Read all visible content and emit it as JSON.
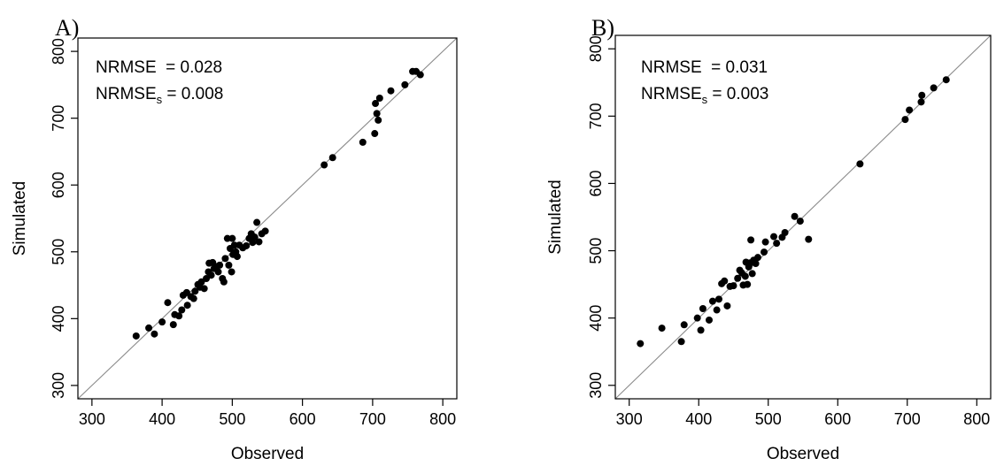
{
  "chart_data": [
    {
      "type": "scatter",
      "panel_label": "A)",
      "xlabel": "Observed",
      "ylabel": "Simulated",
      "xlim": [
        280,
        820
      ],
      "ylim": [
        280,
        820
      ],
      "xticks": [
        300,
        400,
        500,
        600,
        700,
        800
      ],
      "yticks": [
        300,
        400,
        500,
        600,
        700,
        800
      ],
      "grid": false,
      "reference_line": "y = x",
      "annotations": {
        "line1": "NRMSE  = 0.028",
        "line2_prefix": "NRMSE",
        "line2_sub": "s",
        "line2_suffix": " = 0.008"
      },
      "points": [
        [
          363,
          374
        ],
        [
          381,
          386
        ],
        [
          389,
          377
        ],
        [
          400,
          395
        ],
        [
          408,
          424
        ],
        [
          416,
          391
        ],
        [
          418,
          406
        ],
        [
          424,
          404
        ],
        [
          428,
          413
        ],
        [
          430,
          435
        ],
        [
          435,
          439
        ],
        [
          436,
          420
        ],
        [
          441,
          433
        ],
        [
          445,
          430
        ],
        [
          447,
          441
        ],
        [
          451,
          451
        ],
        [
          454,
          447
        ],
        [
          456,
          455
        ],
        [
          460,
          445
        ],
        [
          463,
          460
        ],
        [
          466,
          470
        ],
        [
          467,
          483
        ],
        [
          470,
          465
        ],
        [
          472,
          484
        ],
        [
          474,
          475
        ],
        [
          478,
          478
        ],
        [
          480,
          470
        ],
        [
          482,
          480
        ],
        [
          486,
          460
        ],
        [
          488,
          455
        ],
        [
          490,
          490
        ],
        [
          493,
          520
        ],
        [
          495,
          480
        ],
        [
          497,
          505
        ],
        [
          499,
          470
        ],
        [
          500,
          520
        ],
        [
          501,
          496
        ],
        [
          503,
          510
        ],
        [
          505,
          500
        ],
        [
          507,
          493
        ],
        [
          510,
          510
        ],
        [
          515,
          506
        ],
        [
          520,
          509
        ],
        [
          524,
          520
        ],
        [
          527,
          527
        ],
        [
          529,
          514
        ],
        [
          532,
          522
        ],
        [
          535,
          544
        ],
        [
          538,
          515
        ],
        [
          542,
          527
        ],
        [
          547,
          531
        ],
        [
          631,
          630
        ],
        [
          643,
          641
        ],
        [
          686,
          664
        ],
        [
          703,
          677
        ],
        [
          704,
          722
        ],
        [
          706,
          707
        ],
        [
          708,
          697
        ],
        [
          710,
          730
        ],
        [
          726,
          741
        ],
        [
          746,
          750
        ],
        [
          757,
          770
        ],
        [
          762,
          770
        ],
        [
          768,
          765
        ]
      ]
    },
    {
      "type": "scatter",
      "panel_label": "B)",
      "xlabel": "Observed",
      "ylabel": "Simulated",
      "xlim": [
        280,
        820
      ],
      "ylim": [
        280,
        820
      ],
      "xticks": [
        300,
        400,
        500,
        600,
        700,
        800
      ],
      "yticks": [
        300,
        400,
        500,
        600,
        700,
        800
      ],
      "grid": false,
      "reference_line": "y = x",
      "annotations": {
        "line1": "NRMSE  = 0.031",
        "line2_prefix": "NRMSE",
        "line2_sub": "s",
        "line2_suffix": " = 0.003"
      },
      "points": [
        [
          316,
          362
        ],
        [
          347,
          385
        ],
        [
          375,
          365
        ],
        [
          379,
          390
        ],
        [
          398,
          400
        ],
        [
          403,
          382
        ],
        [
          406,
          414
        ],
        [
          415,
          397
        ],
        [
          420,
          425
        ],
        [
          426,
          412
        ],
        [
          429,
          428
        ],
        [
          433,
          451
        ],
        [
          437,
          455
        ],
        [
          441,
          418
        ],
        [
          445,
          447
        ],
        [
          450,
          448
        ],
        [
          456,
          459
        ],
        [
          459,
          471
        ],
        [
          462,
          467
        ],
        [
          464,
          449
        ],
        [
          467,
          462
        ],
        [
          468,
          483
        ],
        [
          470,
          450
        ],
        [
          472,
          476
        ],
        [
          474,
          482
        ],
        [
          475,
          516
        ],
        [
          477,
          466
        ],
        [
          479,
          486
        ],
        [
          482,
          481
        ],
        [
          485,
          490
        ],
        [
          494,
          498
        ],
        [
          496,
          513
        ],
        [
          508,
          521
        ],
        [
          512,
          511
        ],
        [
          520,
          520
        ],
        [
          524,
          527
        ],
        [
          538,
          551
        ],
        [
          546,
          544
        ],
        [
          558,
          517
        ],
        [
          632,
          629
        ],
        [
          697,
          695
        ],
        [
          703,
          709
        ],
        [
          720,
          721
        ],
        [
          721,
          731
        ],
        [
          738,
          742
        ],
        [
          756,
          754
        ]
      ]
    }
  ]
}
